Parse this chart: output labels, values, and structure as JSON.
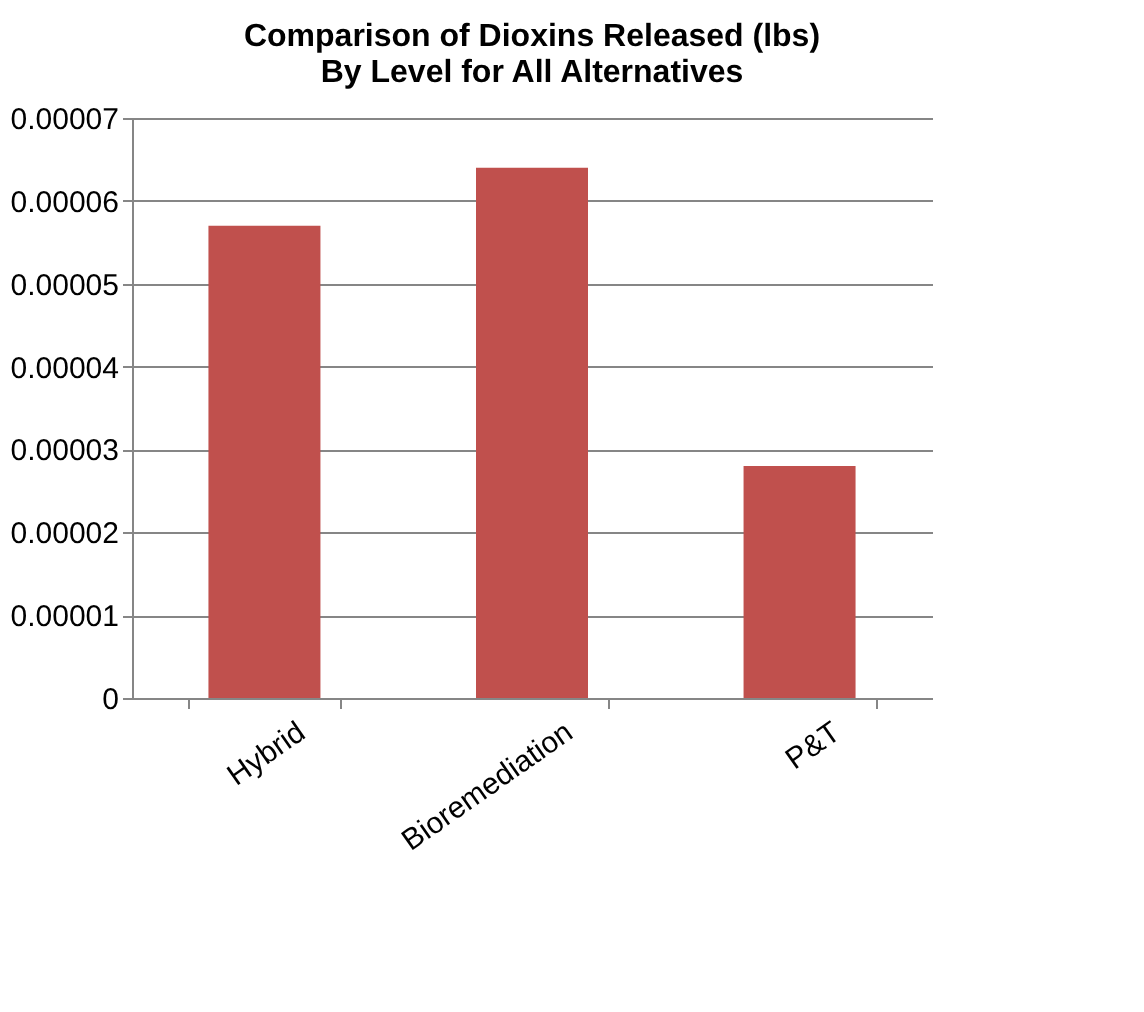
{
  "chart_data": {
    "type": "bar",
    "title": "Comparison of Dioxins Released (lbs) By Level for All Alternatives",
    "categories": [
      "Hybrid",
      "Bioremediation",
      "P&T"
    ],
    "values": [
      5.7e-05,
      6.4e-05,
      2.8e-05
    ],
    "color": "#c0504d",
    "ylim": [
      0,
      7e-05
    ],
    "yticks": [
      0,
      {
        "value": 1e-05,
        "label": "0.00001"
      },
      {
        "value": 2e-05,
        "label": "0.00002"
      },
      {
        "value": 3e-05,
        "label": "0.00003"
      },
      {
        "value": 4e-05,
        "label": "0.00004"
      },
      {
        "value": 5e-05,
        "label": "0.00005"
      },
      {
        "value": 6e-05,
        "label": "0.00006"
      },
      {
        "value": 7e-05,
        "label": "0.00007"
      }
    ],
    "grid": "y"
  }
}
